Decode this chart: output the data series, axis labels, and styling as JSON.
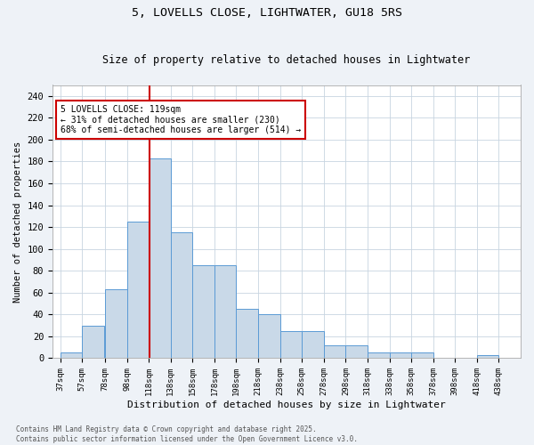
{
  "title1": "5, LOVELLS CLOSE, LIGHTWATER, GU18 5RS",
  "title2": "Size of property relative to detached houses in Lightwater",
  "xlabel": "Distribution of detached houses by size in Lightwater",
  "ylabel": "Number of detached properties",
  "bar_left_edges": [
    37,
    57,
    78,
    98,
    118,
    138,
    158,
    178,
    198,
    218,
    238,
    258,
    278,
    298,
    318,
    338,
    358,
    378,
    398,
    418
  ],
  "bar_heights": [
    5,
    30,
    63,
    125,
    183,
    115,
    85,
    85,
    45,
    40,
    25,
    25,
    12,
    12,
    5,
    5,
    5,
    0,
    0,
    3
  ],
  "tick_labels": [
    "37sqm",
    "57sqm",
    "78sqm",
    "98sqm",
    "118sqm",
    "138sqm",
    "158sqm",
    "178sqm",
    "198sqm",
    "218sqm",
    "238sqm",
    "258sqm",
    "278sqm",
    "298sqm",
    "318sqm",
    "338sqm",
    "358sqm",
    "378sqm",
    "398sqm",
    "418sqm",
    "438sqm"
  ],
  "tick_positions": [
    37,
    57,
    78,
    98,
    118,
    138,
    158,
    178,
    198,
    218,
    238,
    258,
    278,
    298,
    318,
    338,
    358,
    378,
    398,
    418,
    438
  ],
  "bar_color": "#c9d9e8",
  "bar_edge_color": "#5b9bd5",
  "vline_x": 119,
  "vline_color": "#cc0000",
  "ylim": [
    0,
    250
  ],
  "xlim": [
    30,
    458
  ],
  "annotation_text": "5 LOVELLS CLOSE: 119sqm\n← 31% of detached houses are smaller (230)\n68% of semi-detached houses are larger (514) →",
  "annotation_box_color": "#ffffff",
  "annotation_box_edge_color": "#cc0000",
  "footer_text": "Contains HM Land Registry data © Crown copyright and database right 2025.\nContains public sector information licensed under the Open Government Licence v3.0.",
  "bg_color": "#eef2f7",
  "plot_bg_color": "#ffffff",
  "grid_color": "#c8d4e0"
}
